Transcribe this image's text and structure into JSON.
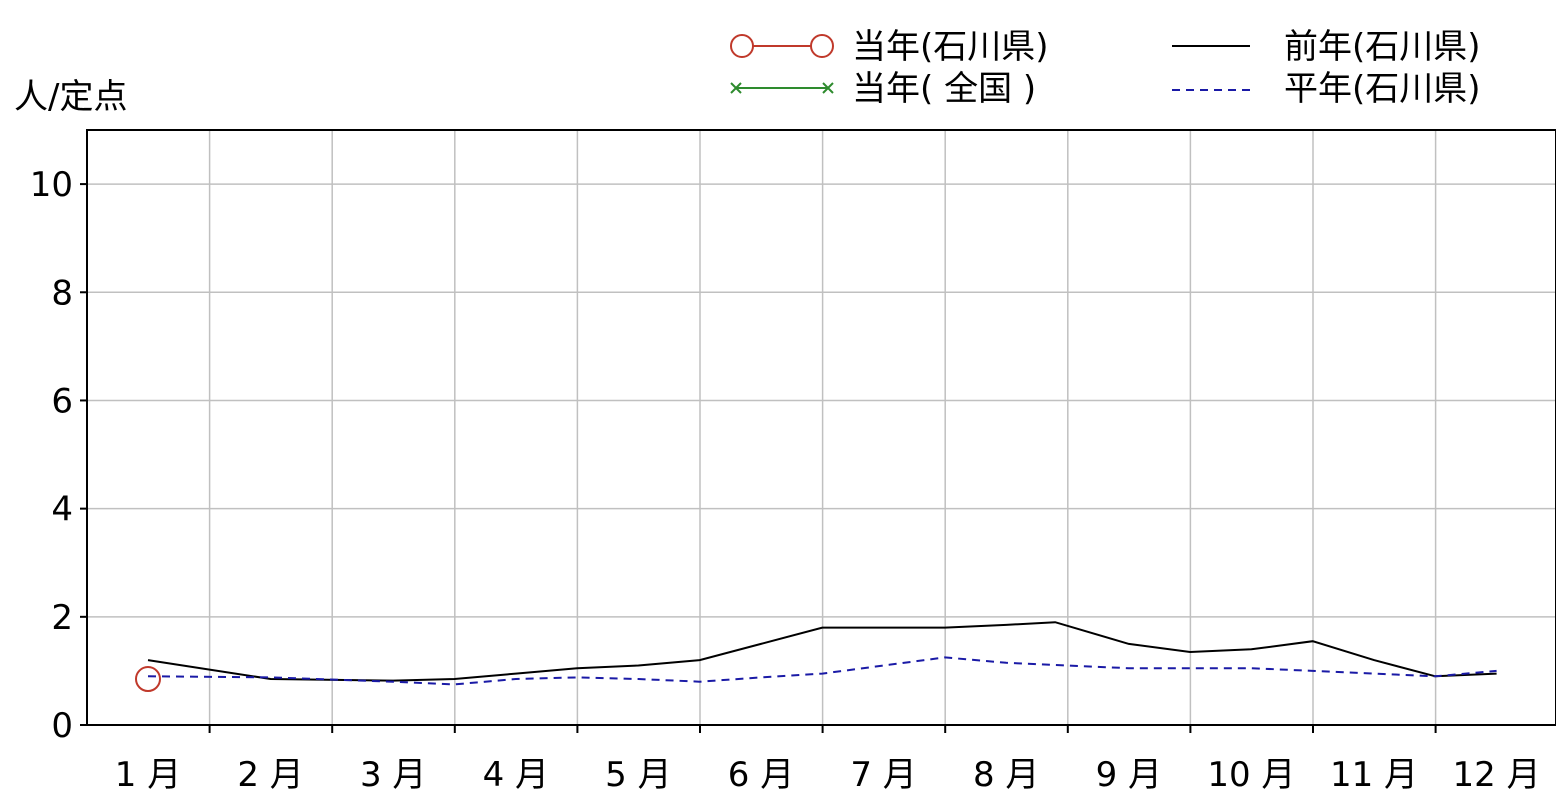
{
  "chart_data": {
    "type": "line",
    "ylabel": "人/定点",
    "xlabel": "",
    "categories": [
      "1 月",
      "2 月",
      "3 月",
      "4 月",
      "5 月",
      "6 月",
      "7 月",
      "8 月",
      "9 月",
      "10 月",
      "11 月",
      "12 月"
    ],
    "ylim": [
      0,
      11
    ],
    "yticks": [
      "0",
      "2",
      "4",
      "6",
      "8",
      "10"
    ],
    "grid": true,
    "legend_position": "top-right",
    "series": [
      {
        "name": "当年(石川県)",
        "color": "#c0392b",
        "style": "line-circle",
        "x": [
          0
        ],
        "values": [
          0.85
        ]
      },
      {
        "name": "当年( 全国 )",
        "color": "#2e8b2e",
        "style": "line-cross",
        "x": [],
        "values": []
      },
      {
        "name": "前年(石川県)",
        "color": "#000000",
        "style": "solid",
        "x": [
          0,
          1,
          2,
          2.5,
          3,
          3.5,
          4,
          4.5,
          5,
          5.5,
          6,
          6.5,
          7,
          7.4,
          8,
          8.5,
          9,
          9.5,
          10,
          10.5,
          11
        ],
        "values": [
          1.2,
          0.85,
          0.82,
          0.85,
          0.95,
          1.05,
          1.1,
          1.2,
          1.5,
          1.8,
          1.8,
          1.8,
          1.85,
          1.9,
          1.5,
          1.35,
          1.4,
          1.55,
          1.2,
          0.9,
          0.95
        ]
      },
      {
        "name": "平年(石川県)",
        "color": "#1a1aa6",
        "style": "dashed",
        "x": [
          0,
          1,
          2,
          2.5,
          3,
          3.5,
          4,
          4.5,
          5,
          5.5,
          6,
          6.5,
          7,
          7.5,
          8,
          8.5,
          9,
          9.5,
          10,
          10.5,
          11
        ],
        "values": [
          0.9,
          0.88,
          0.8,
          0.75,
          0.85,
          0.88,
          0.85,
          0.8,
          0.88,
          0.95,
          1.1,
          1.25,
          1.15,
          1.1,
          1.05,
          1.05,
          1.05,
          1.0,
          0.95,
          0.9,
          1.0
        ]
      }
    ]
  }
}
